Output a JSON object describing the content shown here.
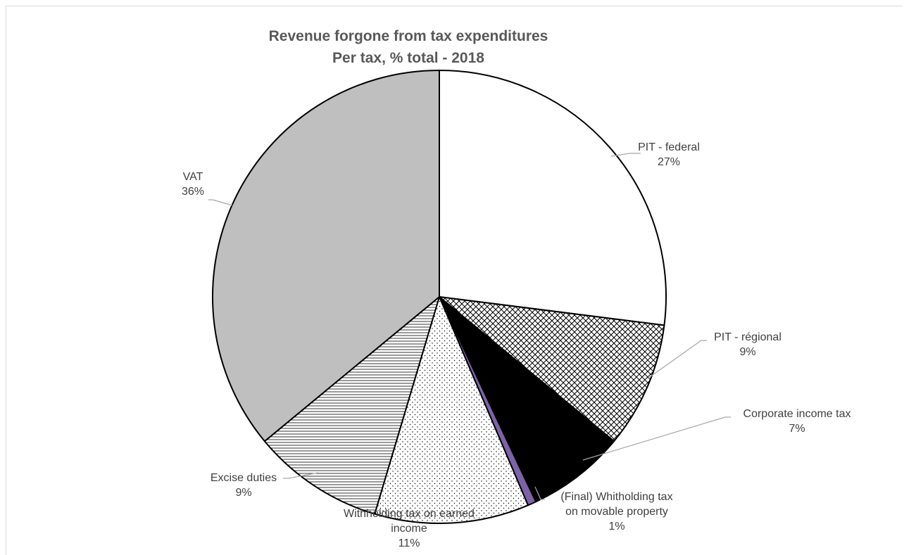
{
  "chart_data": {
    "type": "pie",
    "title": "Revenue forgone from tax expenditures",
    "subtitle": "Per tax, % total - 2018",
    "slices": [
      {
        "id": "pit-federal",
        "label_lines": [
          "PIT - federal"
        ],
        "value": 27,
        "display": "27%",
        "fill": "#ffffff",
        "pattern": "none"
      },
      {
        "id": "pit-regional",
        "label_lines": [
          "PIT - régional"
        ],
        "value": 9,
        "display": "9%",
        "fill": "#ffffff",
        "pattern": "crosshatch"
      },
      {
        "id": "corporate-income-tax",
        "label_lines": [
          "Corporate income tax"
        ],
        "value": 7,
        "display": "7%",
        "fill": "#000000",
        "pattern": "none"
      },
      {
        "id": "final-withholding-tax",
        "label_lines": [
          "(Final) Whitholding tax",
          "on movable property"
        ],
        "value": 0.6,
        "display": "1%",
        "fill": "#7e62a8",
        "pattern": "none"
      },
      {
        "id": "withholding-tax-earned-income",
        "label_lines": [
          "Withholding tax on earned",
          "income"
        ],
        "value": 11,
        "display": "11%",
        "fill": "#ffffff",
        "pattern": "dots"
      },
      {
        "id": "excise-duties",
        "label_lines": [
          "Excise duties"
        ],
        "value": 9.4,
        "display": "9%",
        "fill": "#ffffff",
        "pattern": "horizontal-lines"
      },
      {
        "id": "vat",
        "label_lines": [
          "VAT"
        ],
        "value": 36,
        "display": "36%",
        "fill": "#bfbfbf",
        "pattern": "none"
      }
    ],
    "start": "12 o'clock",
    "direction": "clockwise",
    "legend": "none",
    "label_position": "outside with leader lines"
  }
}
